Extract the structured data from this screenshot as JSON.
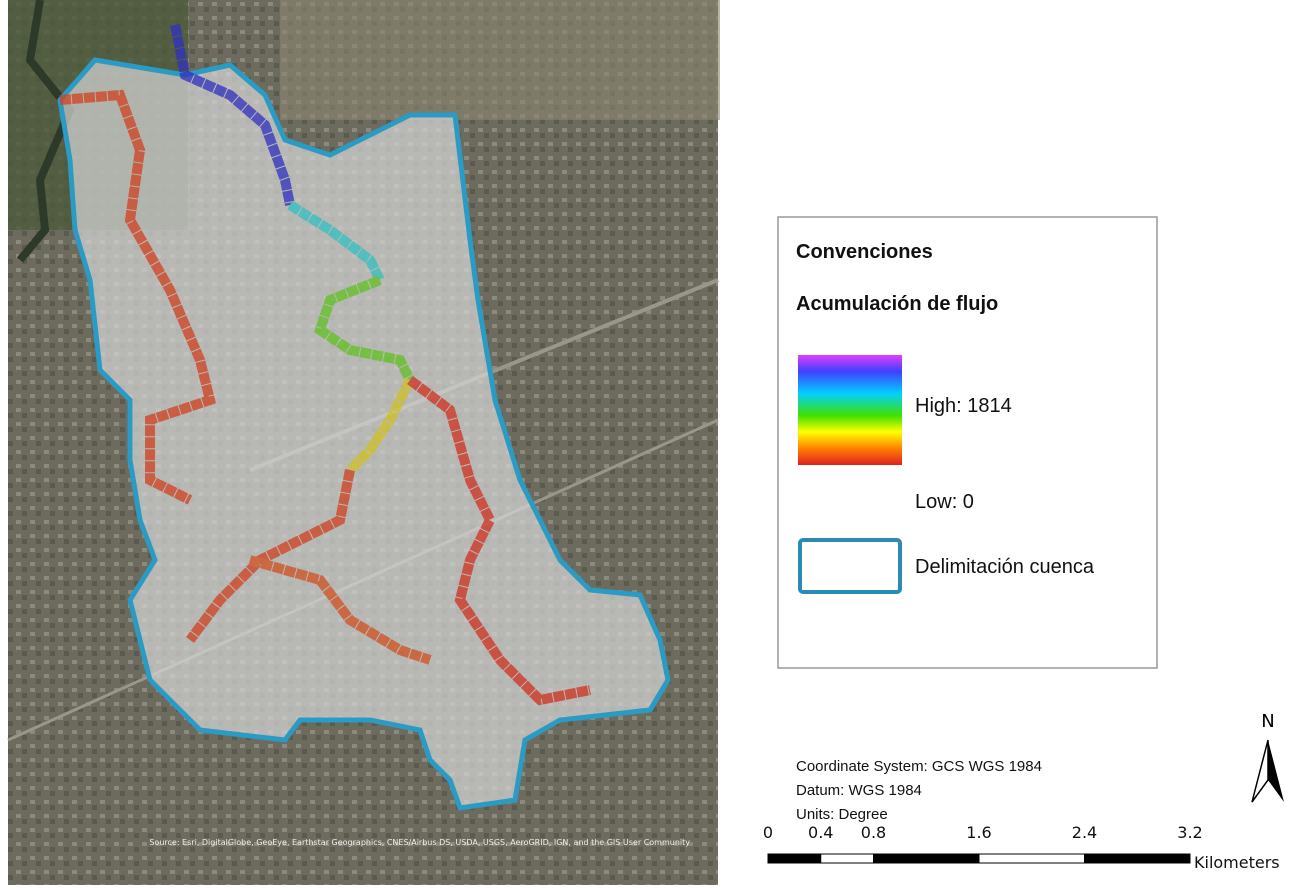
{
  "legend": {
    "title": "Convenciones",
    "subtitle": "Acumulación de flujo",
    "high": "High: 1814",
    "low": "Low: 0",
    "boundary": "Delimitación cuenca"
  },
  "info": {
    "coordinate_system": "Coordinate System: GCS WGS 1984",
    "datum": "Datum: WGS 1984",
    "units": "Units: Degree"
  },
  "scale_bar": {
    "ticks": [
      0,
      0.4,
      0.8,
      1.6,
      2.4,
      3.2
    ],
    "unit": "Kilometers"
  },
  "north": "N",
  "source": "Source: Esri, DigitalGlobe, GeoEye, Earthstar Geographics, CNES/Airbus DS, USDA, USGS, AeroGRID, IGN, and the GIS User Community"
}
